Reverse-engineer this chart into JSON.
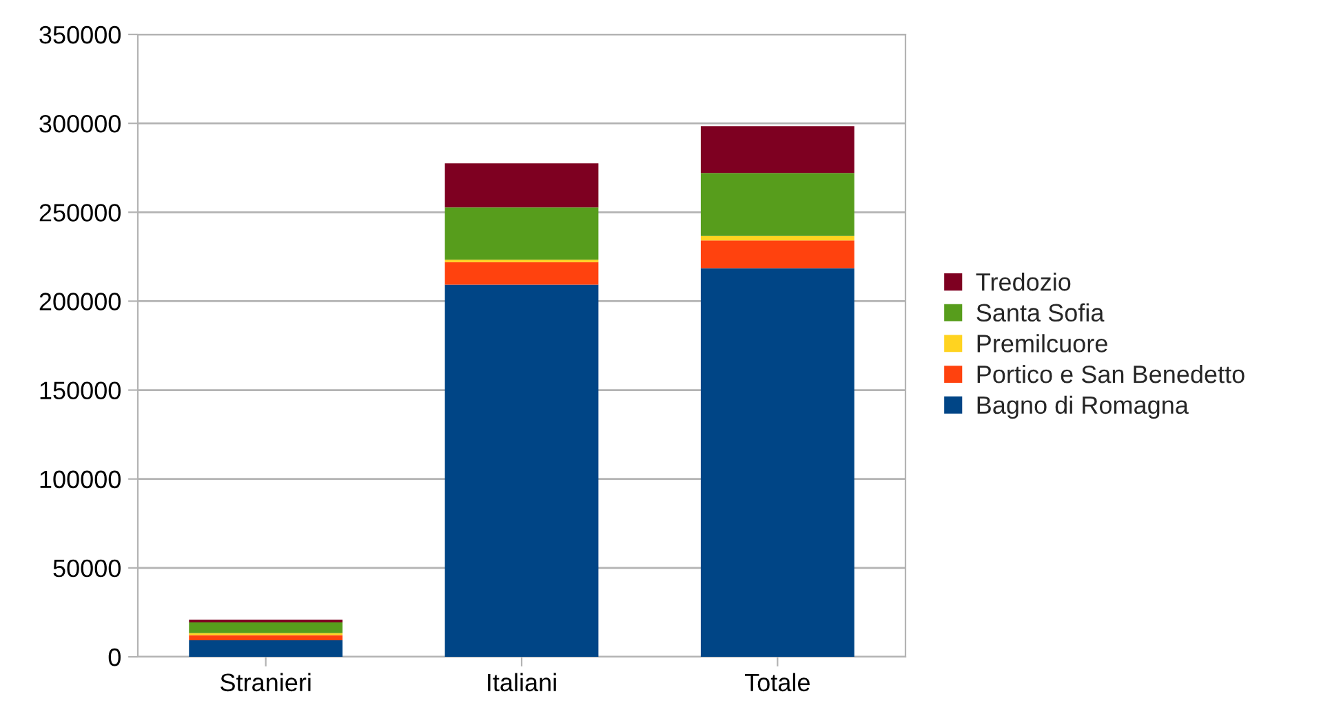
{
  "chart_data": {
    "type": "bar",
    "stacked": true,
    "categories": [
      "Stranieri",
      "Italiani",
      "Totale"
    ],
    "series": [
      {
        "name": "Bagno di Romagna",
        "color": "#004586",
        "values": [
          9300,
          209300,
          218600
        ]
      },
      {
        "name": "Portico e San Benedetto",
        "color": "#ff420e",
        "values": [
          2900,
          12600,
          15500
        ]
      },
      {
        "name": "Premilcuore",
        "color": "#ffd320",
        "values": [
          1200,
          1400,
          2600
        ]
      },
      {
        "name": "Santa Sofia",
        "color": "#579d1c",
        "values": [
          6000,
          29400,
          35400
        ]
      },
      {
        "name": "Tredozio",
        "color": "#7e0021",
        "values": [
          1500,
          24800,
          26300
        ]
      }
    ],
    "ylim": [
      0,
      350000
    ],
    "yticks": [
      0,
      50000,
      100000,
      150000,
      200000,
      250000,
      300000,
      350000
    ],
    "grid": "y",
    "legend": "right"
  }
}
